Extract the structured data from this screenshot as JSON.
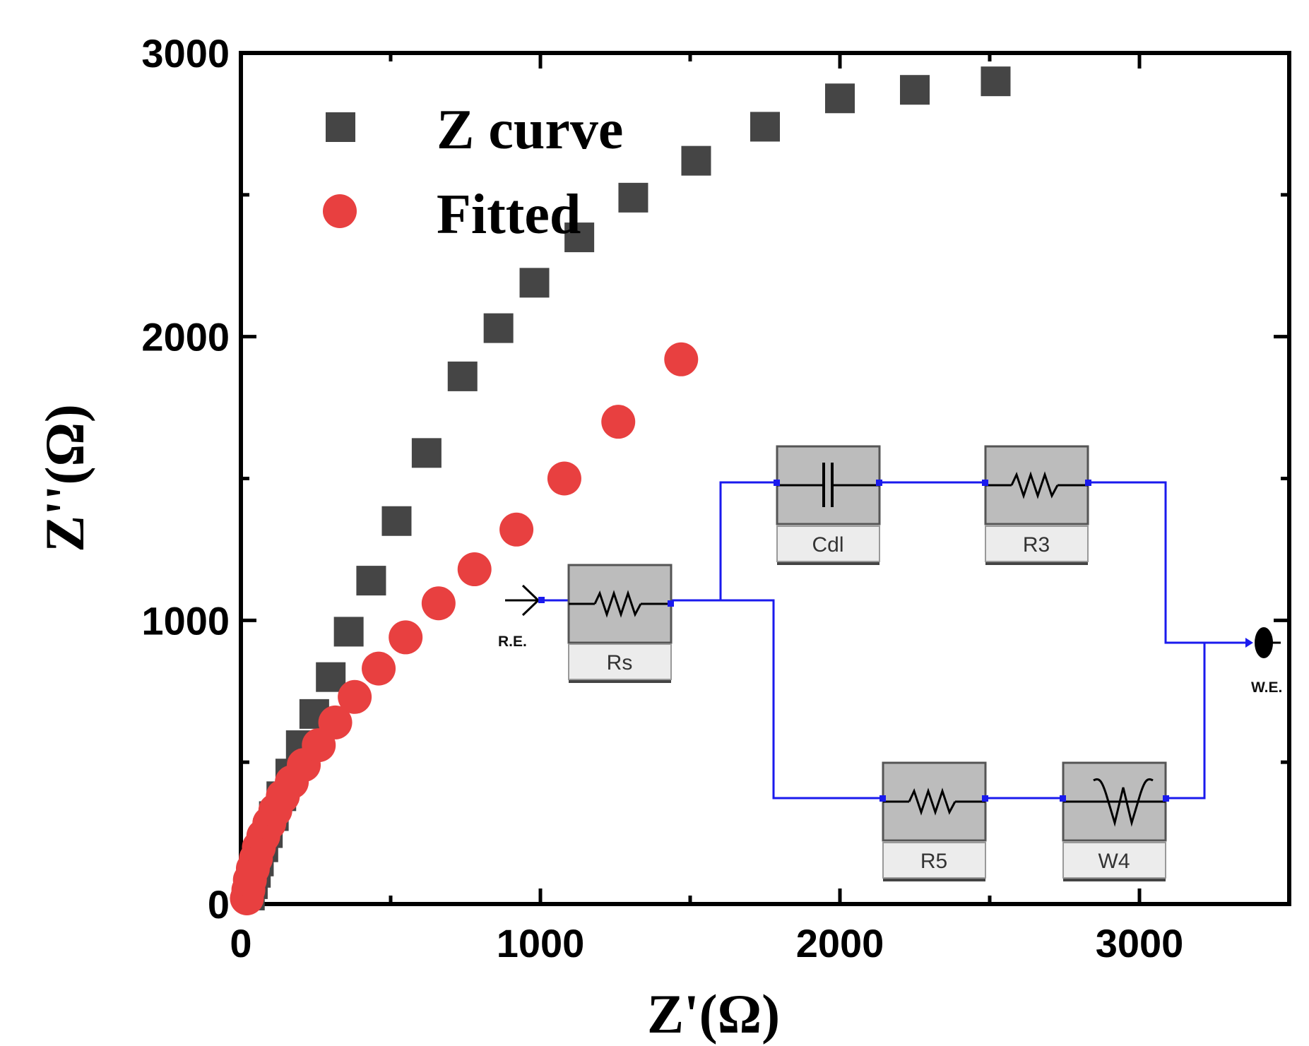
{
  "chart_data": {
    "type": "scatter",
    "title": "",
    "xlabel": "Z'(Ω)",
    "ylabel": "Z''(Ω)",
    "xlim": [
      0,
      3500
    ],
    "ylim": [
      0,
      3000
    ],
    "xticks": [
      0,
      1000,
      2000,
      3000
    ],
    "yticks": [
      0,
      1000,
      2000,
      3000
    ],
    "grid": false,
    "legend_position": "top-left",
    "series": [
      {
        "name": "Z curve",
        "marker": "square",
        "color": "#454545",
        "x": [
          30,
          40,
          50,
          60,
          75,
          90,
          110,
          135,
          165,
          200,
          245,
          300,
          360,
          435,
          520,
          620,
          740,
          860,
          980,
          1130,
          1310,
          1520,
          1750,
          2000,
          2250,
          2520
        ],
        "y": [
          30,
          70,
          110,
          150,
          200,
          250,
          310,
          380,
          460,
          560,
          670,
          800,
          960,
          1140,
          1350,
          1590,
          1860,
          2030,
          2190,
          2350,
          2490,
          2620,
          2740,
          2840,
          2870,
          2900
        ]
      },
      {
        "name": "Fitted",
        "marker": "circle",
        "color": "#e84040",
        "x": [
          20,
          25,
          30,
          40,
          50,
          60,
          75,
          95,
          115,
          140,
          170,
          210,
          260,
          315,
          380,
          460,
          550,
          660,
          780,
          920,
          1080,
          1260,
          1470
        ],
        "y": [
          20,
          50,
          85,
          125,
          160,
          200,
          240,
          285,
          330,
          380,
          430,
          490,
          560,
          640,
          730,
          830,
          940,
          1060,
          1180,
          1320,
          1500,
          1700,
          1920
        ]
      }
    ]
  },
  "inset_circuit": {
    "wire_color": "#1a1aee",
    "components": {
      "rs": "Rs",
      "cdl": "Cdl",
      "r3": "R3",
      "r5": "R5",
      "w4": "W4"
    },
    "terminals": {
      "reference": "R.E.",
      "working": "W.E."
    }
  }
}
